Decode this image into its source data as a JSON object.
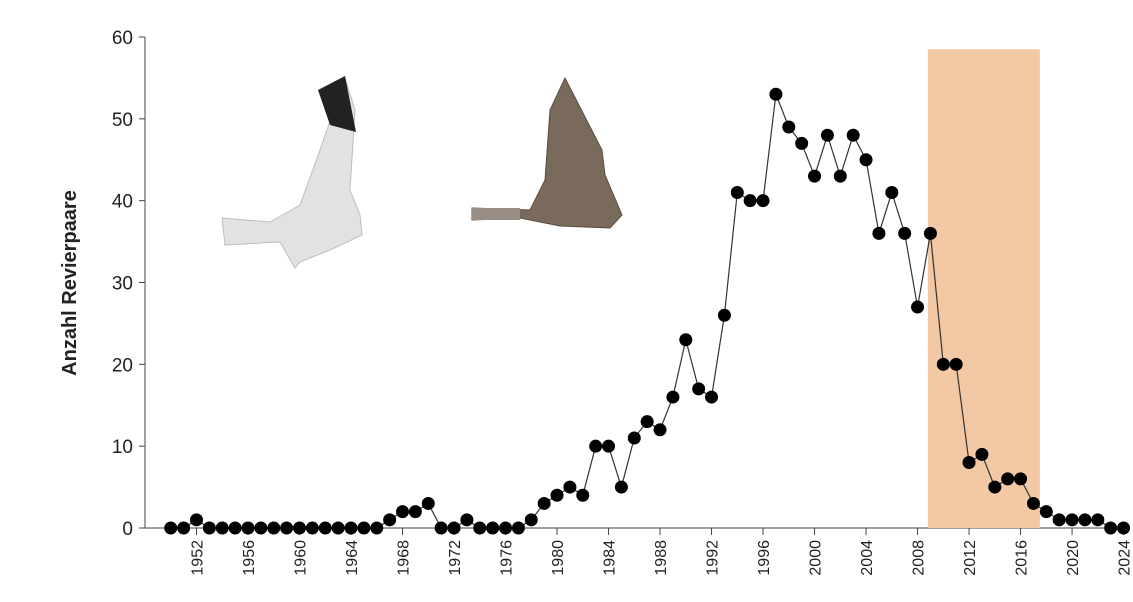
{
  "chart_data": {
    "type": "line",
    "y_label": "Anzahl Revierpaare",
    "x": [
      1950,
      1951,
      1952,
      1953,
      1954,
      1955,
      1956,
      1957,
      1958,
      1959,
      1960,
      1961,
      1962,
      1963,
      1964,
      1965,
      1966,
      1967,
      1968,
      1969,
      1970,
      1971,
      1972,
      1973,
      1974,
      1975,
      1976,
      1977,
      1978,
      1979,
      1980,
      1981,
      1982,
      1983,
      1984,
      1985,
      1986,
      1987,
      1988,
      1989,
      1990,
      1991,
      1992,
      1993,
      1994,
      1995,
      1996,
      1997,
      1998,
      1999,
      2000,
      2001,
      2002,
      2003,
      2004,
      2005,
      2006,
      2007,
      2008,
      2009,
      2010,
      2011,
      2012,
      2013,
      2014,
      2015,
      2016,
      2017,
      2018,
      2019,
      2020,
      2021,
      2022,
      2023,
      2024
    ],
    "values": [
      0,
      0,
      1,
      0,
      0,
      0,
      0,
      0,
      0,
      0,
      0,
      0,
      0,
      0,
      0,
      0,
      0,
      1,
      2,
      2,
      3,
      0,
      0,
      1,
      0,
      0,
      0,
      0,
      1,
      3,
      4,
      5,
      4,
      10,
      10,
      5,
      11,
      13,
      12,
      16,
      23,
      17,
      16,
      26,
      41,
      40,
      40,
      53,
      49,
      47,
      43,
      48,
      43,
      48,
      45,
      36,
      41,
      36,
      27,
      36,
      20,
      20,
      8,
      9,
      5,
      6,
      6,
      3,
      2,
      1,
      1,
      1,
      1,
      0,
      0
    ],
    "color": "#000000",
    "line_color": "#333333",
    "xlim": [
      1948,
      2024.5
    ],
    "xticks": [
      1952,
      1956,
      1960,
      1964,
      1968,
      1972,
      1976,
      1980,
      1984,
      1988,
      1992,
      1996,
      2000,
      2004,
      2008,
      2012,
      2016,
      2020,
      2024
    ],
    "ylim": [
      0,
      60
    ],
    "yticks": [
      0,
      10,
      20,
      30,
      40,
      50,
      60
    ],
    "highlight": {
      "x": [
        2008.8,
        2017.5
      ],
      "y": [
        0,
        58.5
      ],
      "color": "#f3c9a5"
    }
  }
}
